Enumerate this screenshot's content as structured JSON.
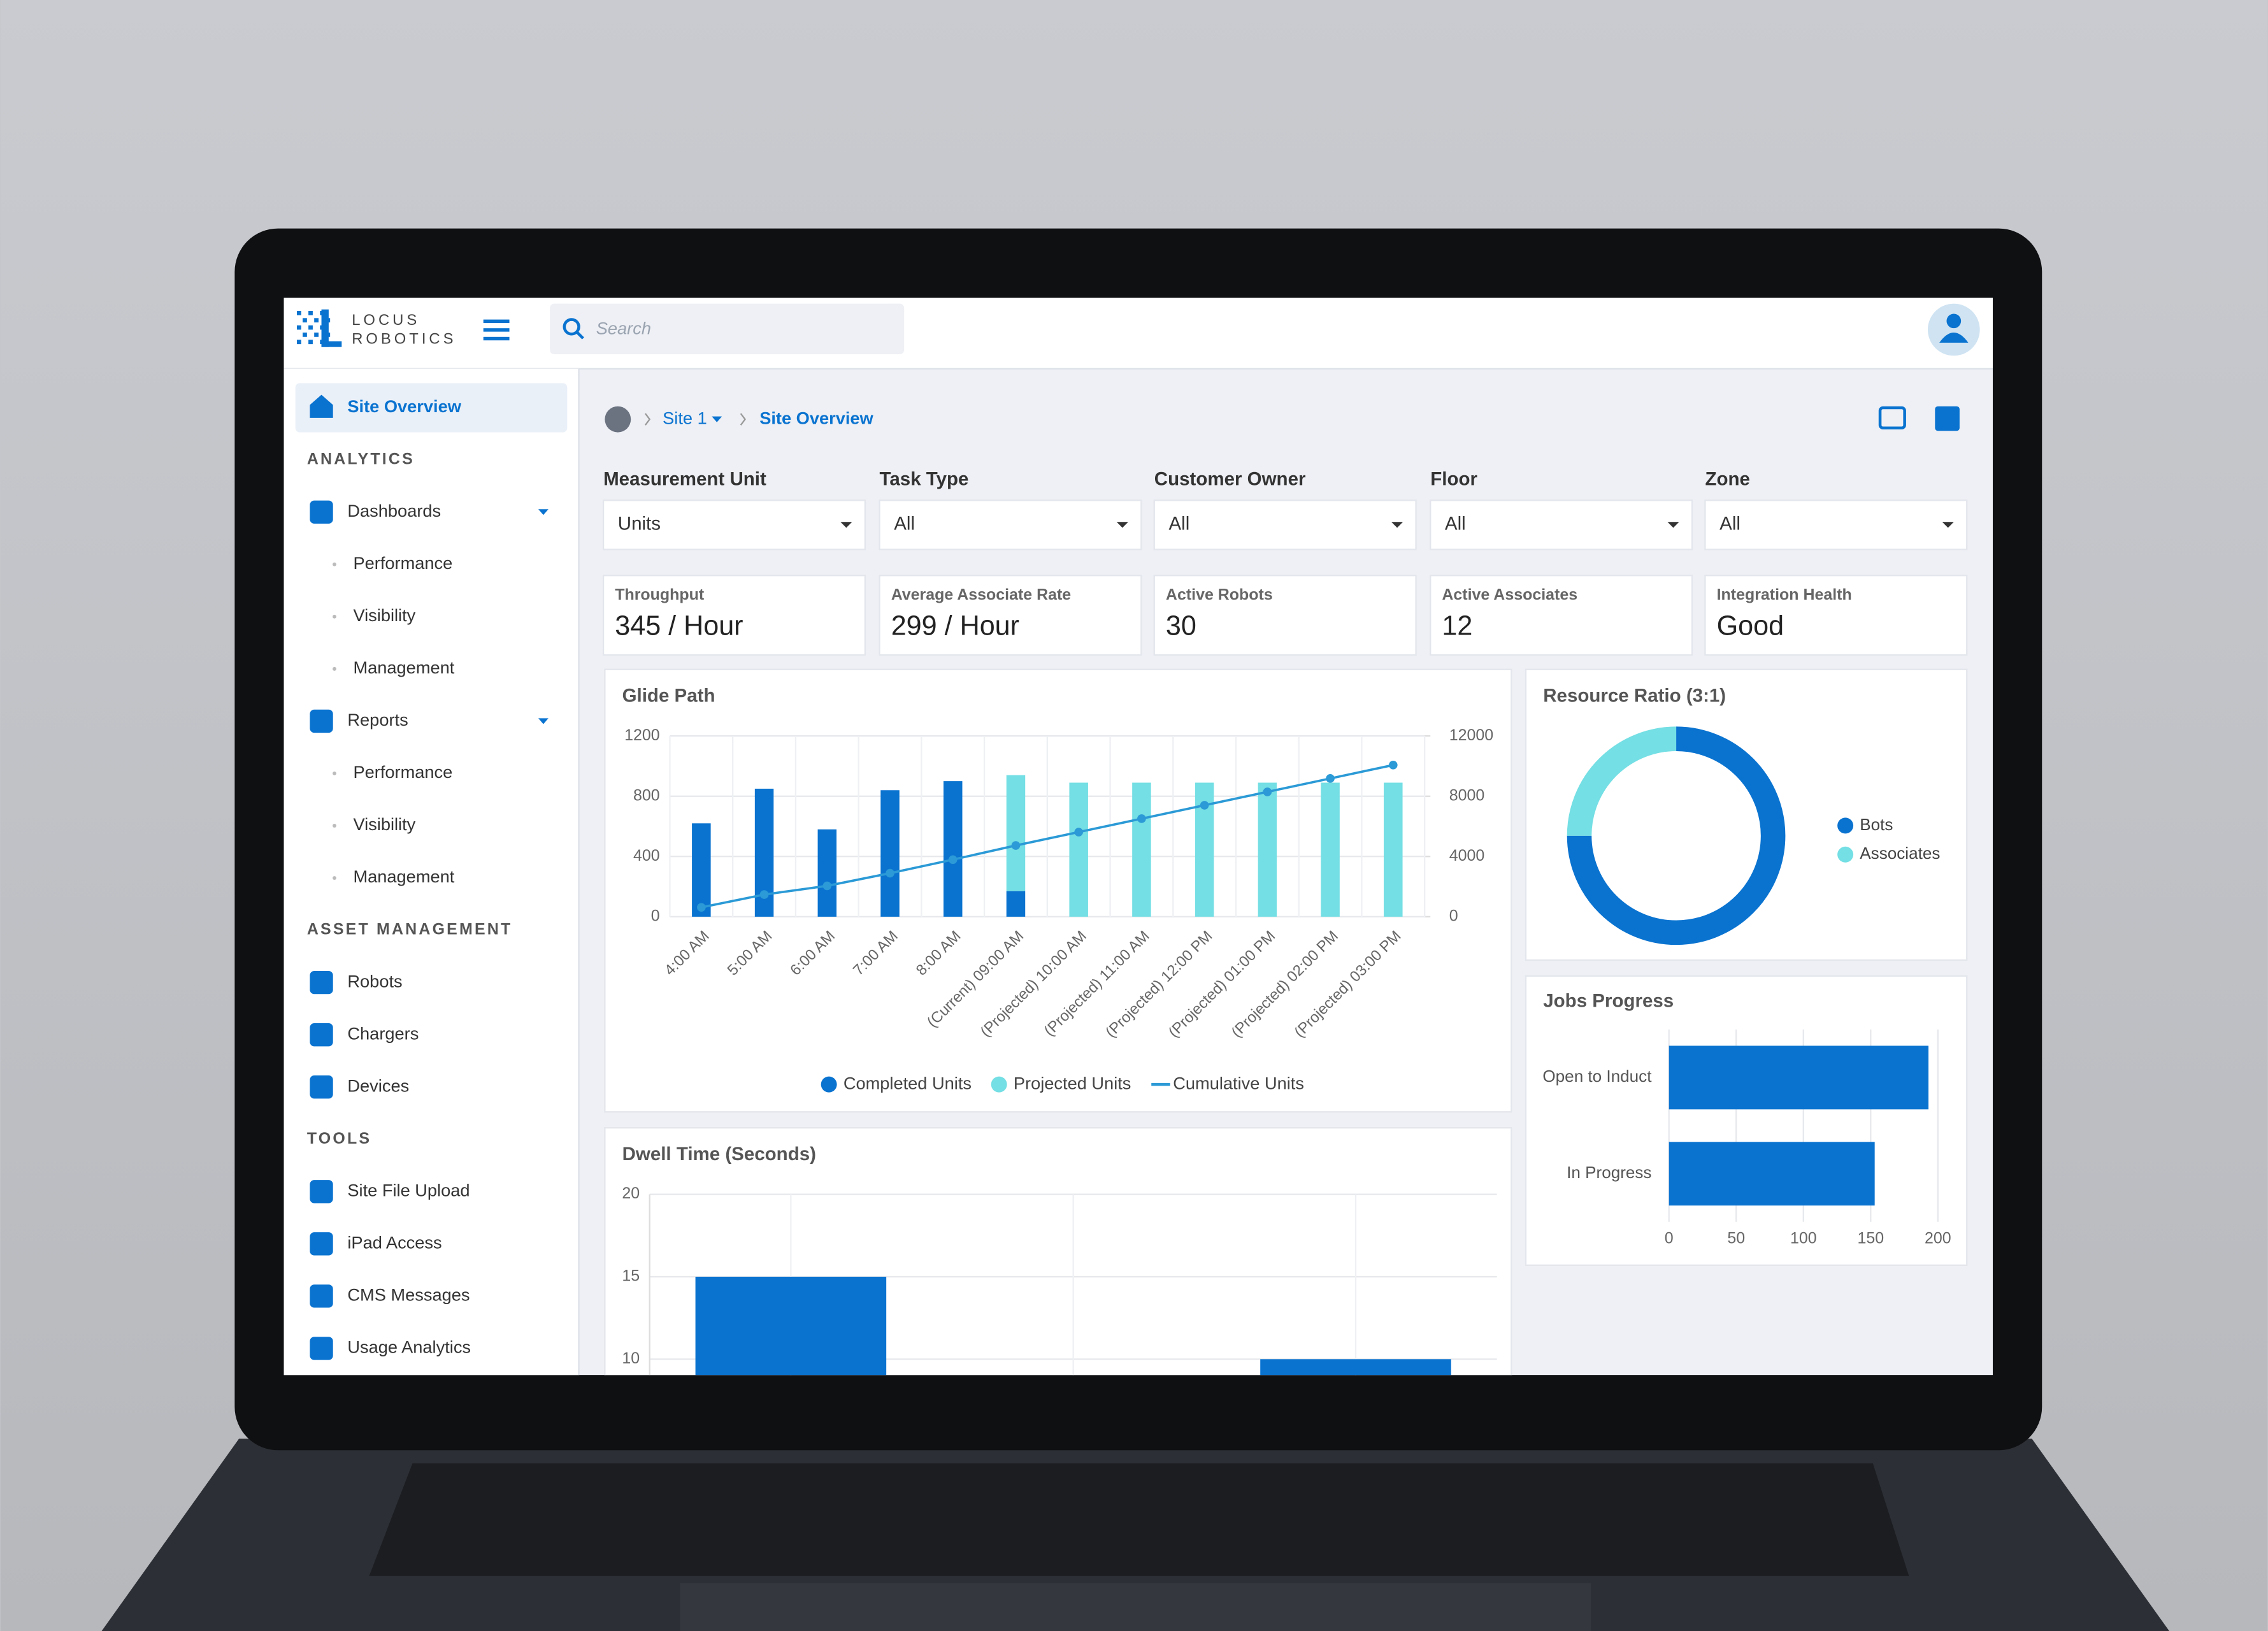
{
  "header": {
    "logo_top": "LOCUS",
    "logo_bottom": "ROBOTICS",
    "search_placeholder": "Search"
  },
  "sidebar": {
    "active": "Site Overview",
    "sections": [
      {
        "title": "ANALYTICS",
        "items": [
          {
            "label": "Dashboards",
            "children": [
              "Performance",
              "Visibility",
              "Management"
            ]
          },
          {
            "label": "Reports",
            "children": [
              "Performance",
              "Visibility",
              "Management"
            ]
          }
        ]
      },
      {
        "title": "ASSET MANAGEMENT",
        "items": [
          {
            "label": "Robots"
          },
          {
            "label": "Chargers"
          },
          {
            "label": "Devices"
          }
        ]
      },
      {
        "title": "TOOLS",
        "items": [
          {
            "label": "Site File Upload"
          },
          {
            "label": "iPad Access"
          },
          {
            "label": "CMS Messages"
          },
          {
            "label": "Usage Analytics"
          }
        ]
      }
    ]
  },
  "breadcrumb": {
    "site": "Site 1",
    "page": "Site Overview"
  },
  "filters": [
    {
      "label": "Measurement Unit",
      "value": "Units"
    },
    {
      "label": "Task Type",
      "value": "All"
    },
    {
      "label": "Customer Owner",
      "value": "All"
    },
    {
      "label": "Floor",
      "value": "All"
    },
    {
      "label": "Zone",
      "value": "All"
    }
  ],
  "kpis": [
    {
      "label": "Throughput",
      "value": "345 / Hour"
    },
    {
      "label": "Average Associate Rate",
      "value": "299 / Hour"
    },
    {
      "label": "Active Robots",
      "value": "30"
    },
    {
      "label": "Active Associates",
      "value": "12"
    },
    {
      "label": "Integration Health",
      "value": "Good"
    }
  ],
  "chart_data": [
    {
      "type": "bar",
      "title": "Glide Path",
      "categories": [
        "4:00 AM",
        "5:00 AM",
        "6:00 AM",
        "7:00 AM",
        "8:00 AM",
        "(Current) 09:00 AM",
        "(Projected) 10:00 AM",
        "(Projected) 11:00 AM",
        "(Projected) 12:00 PM",
        "(Projected) 01:00 PM",
        "(Projected) 02:00 PM",
        "(Projected) 03:00 PM"
      ],
      "series": [
        {
          "name": "Completed Units",
          "color": "#0a73d0",
          "values": [
            620,
            850,
            580,
            840,
            900,
            170,
            null,
            null,
            null,
            null,
            null,
            null
          ]
        },
        {
          "name": "Projected Units",
          "color": "#74dfe4",
          "values": [
            null,
            null,
            null,
            null,
            null,
            770,
            890,
            890,
            890,
            890,
            890,
            890
          ]
        },
        {
          "name": "Cumulative Units",
          "type": "line",
          "axis": "y2",
          "color": "#2b9ad6",
          "values": [
            620,
            1470,
            2050,
            2890,
            3790,
            4730,
            5620,
            6510,
            7400,
            8290,
            9180,
            10070
          ]
        }
      ],
      "stacked": true,
      "ylim": [
        0,
        1200
      ],
      "yticks": [
        0,
        400,
        800,
        1200
      ],
      "y2lim": [
        0,
        12000
      ],
      "y2ticks": [
        0,
        4000,
        8000,
        12000
      ],
      "grid": true,
      "legend": "bottom"
    },
    {
      "type": "donut",
      "title": "Resource Ratio (3:1)",
      "categories": [
        "Bots",
        "Associates"
      ],
      "values": [
        75,
        25
      ],
      "colors": [
        "#0a73d0",
        "#74dfe4"
      ],
      "legend": "right"
    },
    {
      "type": "hbar",
      "title": "Jobs Progress",
      "categories": [
        "Open to Induct",
        "In Progress"
      ],
      "values": [
        193,
        153
      ],
      "color": "#0a73d0",
      "xlim": [
        0,
        200
      ],
      "xticks": [
        0,
        50,
        100,
        150,
        200
      ],
      "grid": true
    },
    {
      "type": "bar",
      "title": "Dwell Time (Seconds)",
      "categories": [
        null,
        null,
        null
      ],
      "values": [
        15,
        null,
        10
      ],
      "color": "#0a73d0",
      "ylim": [
        0,
        20
      ],
      "yticks": [
        10,
        15,
        20
      ],
      "grid": true
    }
  ]
}
